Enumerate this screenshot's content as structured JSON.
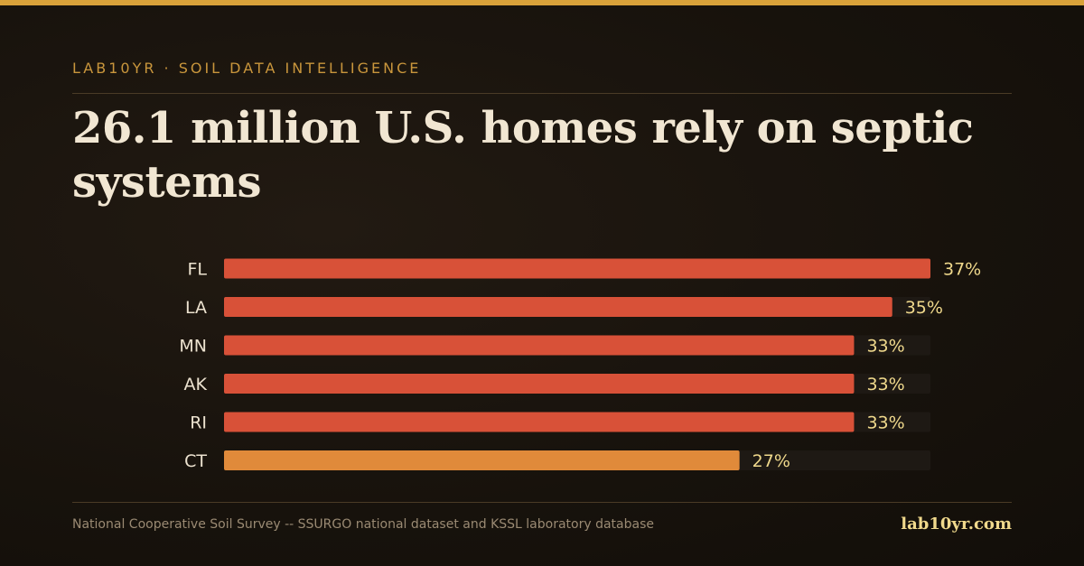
{
  "header": {
    "eyebrow": "LAB10YR · SOIL DATA INTELLIGENCE",
    "headline": "26.1 million U.S. homes rely on septic systems"
  },
  "chart_data": {
    "type": "bar",
    "orientation": "horizontal",
    "categories": [
      "FL",
      "LA",
      "MN",
      "AK",
      "RI",
      "CT"
    ],
    "values": [
      37,
      35,
      33,
      33,
      33,
      27
    ],
    "value_labels": [
      "37%",
      "35%",
      "33%",
      "33%",
      "33%",
      "27%"
    ],
    "unit": "%",
    "xlim": [
      0,
      37
    ],
    "bar_colors": [
      "#d85138",
      "#d85138",
      "#d85138",
      "#d85138",
      "#d85138",
      "#e08a3a"
    ],
    "track_color": "#1e1914",
    "grid": false
  },
  "footer": {
    "source": "National Cooperative Soil Survey -- SSURGO national dataset and KSSL laboratory database",
    "brand": "lab10yr.com"
  }
}
